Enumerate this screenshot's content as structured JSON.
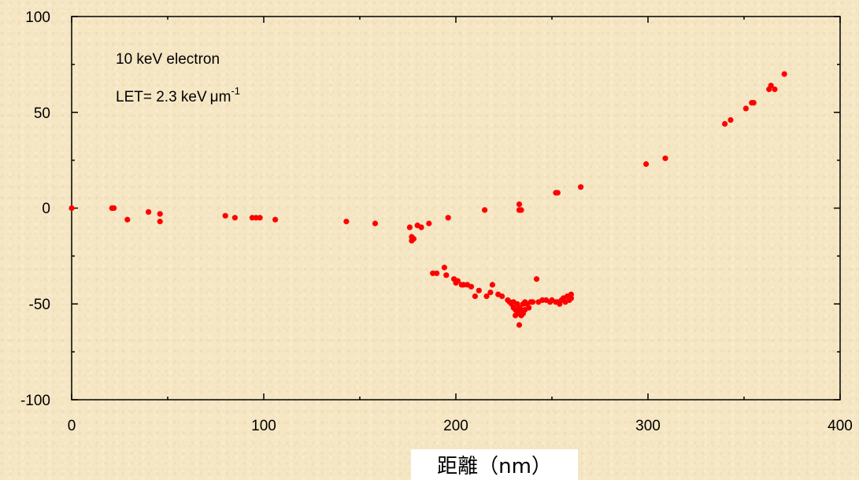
{
  "chart_data": {
    "type": "scatter",
    "title": "",
    "xlabel": "距離（nm）",
    "ylabel": "",
    "xlim": [
      0,
      400
    ],
    "ylim": [
      -100,
      100
    ],
    "xticks": [
      "0",
      "100",
      "200",
      "300",
      "400"
    ],
    "yticks": [
      "100",
      "50",
      "0",
      "-50",
      "-100"
    ],
    "grid": false,
    "marker_color": "#ff0000",
    "annotations": {
      "line1": "10 keV electron",
      "line2_main": "LET= 2.3 keV",
      "line2_unit": "m",
      "line2_mu": "μ",
      "line2_exp": "-1"
    },
    "series": [
      {
        "x": [
          0,
          21,
          22,
          29,
          40,
          46,
          46,
          80,
          85,
          94,
          96,
          98,
          106,
          143,
          158,
          176,
          177,
          177,
          178,
          178,
          180,
          182,
          186,
          196,
          215,
          233,
          233,
          234,
          252,
          253,
          265,
          299,
          309,
          340,
          343,
          351,
          354,
          355,
          363,
          364,
          366,
          371,
          188,
          190,
          194,
          195,
          199,
          200,
          201,
          203,
          204,
          206,
          208,
          210,
          212,
          216,
          218,
          219,
          222,
          224,
          227,
          228,
          229,
          230,
          230,
          231,
          231,
          232,
          232,
          233,
          233,
          234,
          234,
          235,
          235,
          236,
          236,
          237,
          238,
          239,
          240,
          242,
          243,
          245,
          247,
          249,
          250,
          252,
          253,
          254,
          255,
          256,
          257,
          258,
          259,
          260,
          260,
          233
        ],
        "y": [
          0,
          0,
          0,
          -6,
          -2,
          -3,
          -7,
          -4,
          -5,
          -5,
          -5,
          -5,
          -6,
          -7,
          -8,
          -10,
          -17,
          -15,
          -16,
          -16,
          -9,
          -10,
          -8,
          -5,
          -1,
          2,
          -1,
          -1,
          8,
          8,
          11,
          23,
          26,
          44,
          46,
          52,
          55,
          55,
          62,
          64,
          62,
          70,
          -34,
          -34,
          -31,
          -35,
          -37,
          -39,
          -38,
          -40,
          -40,
          -40,
          -41,
          -46,
          -43,
          -46,
          -44,
          -40,
          -45,
          -46,
          -48,
          -49,
          -50,
          -52,
          -49,
          -53,
          -56,
          -54,
          -50,
          -55,
          -52,
          -53,
          -56,
          -50,
          -55,
          -49,
          -53,
          -50,
          -52,
          -49,
          -49,
          -37,
          -49,
          -48,
          -48,
          -49,
          -48,
          -49,
          -49,
          -50,
          -48,
          -47,
          -49,
          -46,
          -48,
          -45,
          -47,
          -61
        ]
      }
    ]
  }
}
